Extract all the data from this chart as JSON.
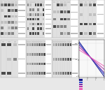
{
  "figure_bg": "#e8e8e8",
  "panel_bg": "#d8d8d8",
  "panel_frame": "#999999",
  "band_dark": "#303030",
  "band_mid": "#606060",
  "band_light": "#909090",
  "label_strip_bg": "#f0f0f0",
  "graph": {
    "bg_color": "#f8f8f8",
    "grid_color": "#cccccc",
    "xlim_log": [
      2,
      5
    ],
    "ylim": [
      -5,
      110
    ],
    "line_colors": [
      "#111188",
      "#2244cc",
      "#7733aa",
      "#bb33aa",
      "#ee66bb"
    ],
    "line_y_starts": [
      105,
      100,
      95,
      88,
      80
    ],
    "line_y_ends": [
      -2,
      5,
      10,
      20,
      30
    ],
    "legend_colors": [
      "#111188",
      "#2244cc",
      "#7733aa",
      "#bb33aa",
      "#ee66bb"
    ]
  }
}
